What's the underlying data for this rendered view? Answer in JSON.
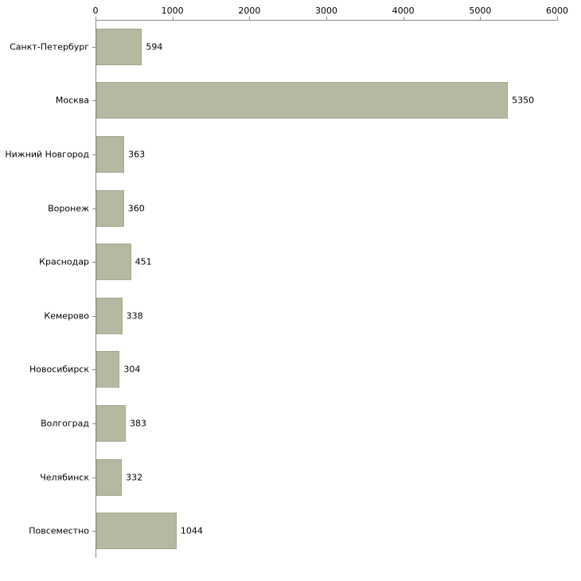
{
  "chart_data": {
    "type": "bar",
    "orientation": "horizontal",
    "title": "",
    "xlabel": "",
    "ylabel": "",
    "categories": [
      "Санкт-Петербург",
      "Москва",
      "Нижний Новгород",
      "Воронеж",
      "Краснодар",
      "Кемерово",
      "Новосибирск",
      "Волгоград",
      "Челябинск",
      "Повсеместно"
    ],
    "values": [
      594,
      5350,
      363,
      360,
      451,
      338,
      304,
      383,
      332,
      1044
    ],
    "value_labels": [
      "594",
      "5350",
      "363",
      "360",
      "451",
      "338",
      "304",
      "383",
      "332",
      "1044"
    ],
    "x_ticks": [
      0,
      1000,
      2000,
      3000,
      4000,
      5000,
      6000
    ],
    "x_tick_labels": [
      "0",
      "1000",
      "2000",
      "3000",
      "4000",
      "5000",
      "6000"
    ],
    "xlim": [
      0,
      6000
    ],
    "grid": false,
    "legend": "none",
    "colors": {
      "bar_fill": "#b4baa2",
      "bar_border": "#a2a98d",
      "axis": "#8a8a8a",
      "text": "#000000",
      "background": "#ffffff"
    }
  }
}
